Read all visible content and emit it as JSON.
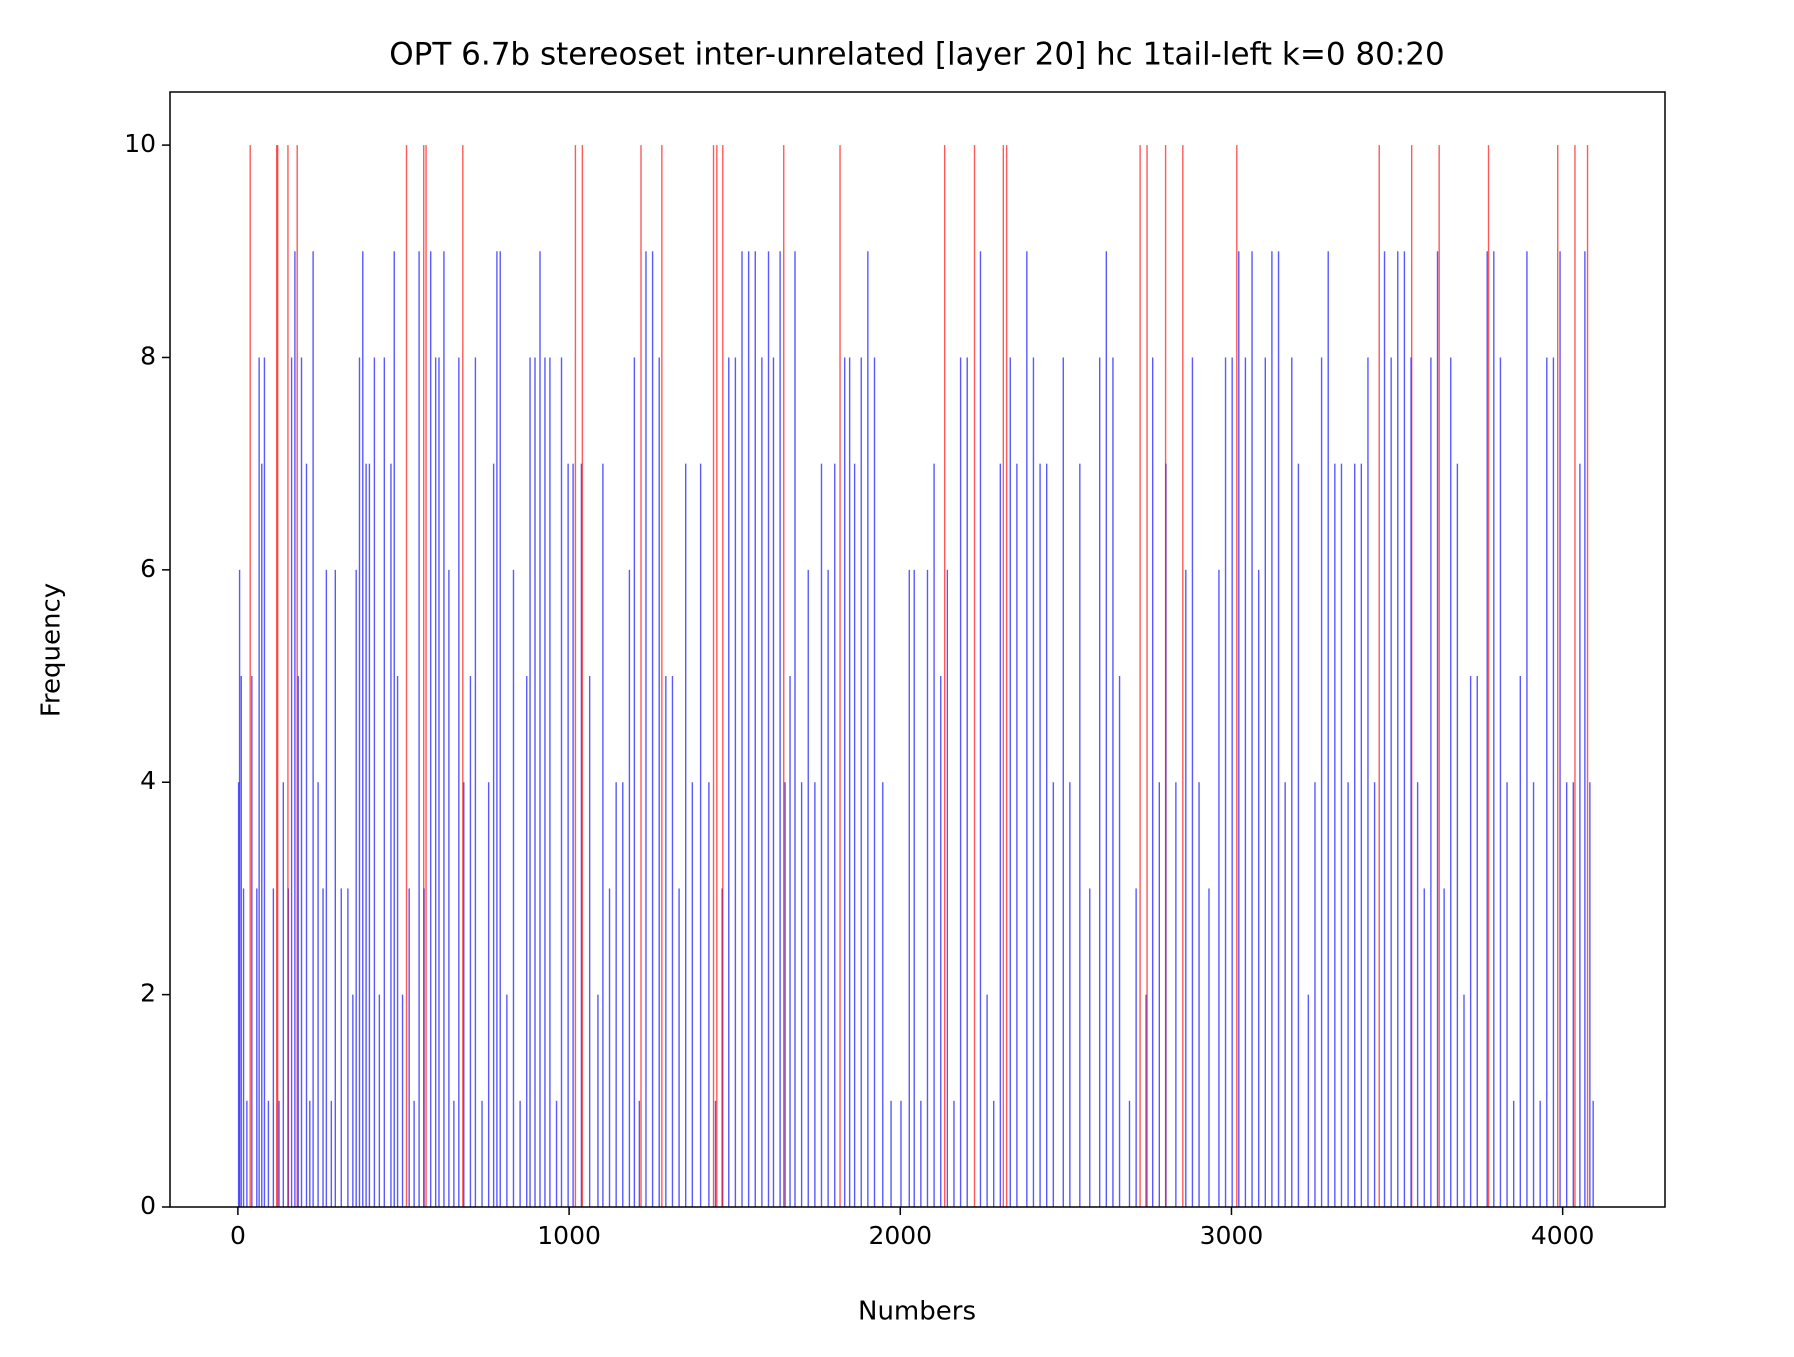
{
  "chart_data": {
    "type": "bar",
    "title": "OPT 6.7b stereoset inter-unrelated [layer 20] hc 1tail-left k=0 80:20",
    "x_label": "Numbers",
    "y_label": "Frequency",
    "xlim": [
      -205,
      4309
    ],
    "ylim": [
      0,
      10.5
    ],
    "xticks": [
      0,
      1000,
      2000,
      3000,
      4000
    ],
    "yticks": [
      0,
      2,
      4,
      6,
      8,
      10
    ],
    "alpha": 0.65,
    "series": [
      {
        "color": "#0000ff",
        "x": [
          0,
          3,
          8,
          15,
          25,
          40,
          55,
          62,
          70,
          78,
          90,
          105,
          122,
          135,
          150,
          160,
          170,
          180,
          190,
          205,
          215,
          225,
          240,
          255,
          265,
          280,
          292,
          310,
          330,
          345,
          355,
          365,
          375,
          385,
          395,
          410,
          425,
          440,
          460,
          470,
          480,
          495,
          515,
          530,
          545,
          560,
          580,
          595,
          605,
          620,
          635,
          650,
          665,
          680,
          700,
          715,
          735,
          755,
          770,
          780,
          790,
          810,
          830,
          850,
          870,
          880,
          895,
          910,
          925,
          940,
          960,
          975,
          995,
          1010,
          1035,
          1060,
          1085,
          1100,
          1120,
          1140,
          1160,
          1180,
          1195,
          1210,
          1230,
          1250,
          1270,
          1290,
          1310,
          1330,
          1350,
          1370,
          1395,
          1420,
          1440,
          1460,
          1480,
          1500,
          1520,
          1540,
          1560,
          1580,
          1600,
          1615,
          1635,
          1650,
          1665,
          1680,
          1700,
          1720,
          1740,
          1760,
          1780,
          1800,
          1830,
          1845,
          1860,
          1880,
          1900,
          1920,
          1945,
          1970,
          2000,
          2025,
          2040,
          2060,
          2080,
          2100,
          2120,
          2140,
          2160,
          2180,
          2200,
          2240,
          2260,
          2280,
          2300,
          2330,
          2350,
          2380,
          2400,
          2420,
          2440,
          2460,
          2490,
          2510,
          2540,
          2570,
          2600,
          2620,
          2640,
          2660,
          2690,
          2710,
          2740,
          2760,
          2780,
          2800,
          2830,
          2860,
          2880,
          2900,
          2930,
          2960,
          2980,
          3000,
          3020,
          3040,
          3060,
          3080,
          3100,
          3120,
          3140,
          3160,
          3180,
          3200,
          3230,
          3250,
          3270,
          3290,
          3310,
          3330,
          3350,
          3370,
          3390,
          3410,
          3430,
          3460,
          3480,
          3500,
          3520,
          3540,
          3560,
          3580,
          3600,
          3620,
          3640,
          3660,
          3680,
          3700,
          3720,
          3740,
          3770,
          3790,
          3810,
          3830,
          3850,
          3870,
          3890,
          3910,
          3930,
          3950,
          3970,
          3990,
          4010,
          4030,
          4050,
          4065,
          4080,
          4090
        ],
        "values": [
          4,
          6,
          5,
          3,
          1,
          5,
          3,
          8,
          7,
          8,
          1,
          3,
          1,
          4,
          3,
          8,
          9,
          5,
          8,
          7,
          1,
          9,
          4,
          3,
          6,
          1,
          6,
          3,
          3,
          2,
          6,
          8,
          9,
          7,
          7,
          8,
          2,
          8,
          7,
          9,
          5,
          2,
          3,
          1,
          9,
          3,
          9,
          8,
          8,
          9,
          6,
          1,
          8,
          4,
          5,
          8,
          1,
          4,
          7,
          9,
          9,
          2,
          6,
          1,
          5,
          8,
          8,
          9,
          8,
          8,
          1,
          8,
          7,
          7,
          7,
          5,
          2,
          7,
          3,
          4,
          4,
          6,
          8,
          1,
          9,
          9,
          8,
          5,
          5,
          3,
          7,
          4,
          7,
          4,
          1,
          3,
          8,
          8,
          9,
          9,
          9,
          8,
          9,
          8,
          9,
          4,
          5,
          9,
          4,
          6,
          4,
          7,
          6,
          7,
          8,
          8,
          7,
          8,
          9,
          8,
          4,
          1,
          1,
          6,
          6,
          1,
          6,
          7,
          5,
          6,
          1,
          8,
          8,
          9,
          2,
          1,
          7,
          8,
          7,
          9,
          8,
          7,
          7,
          4,
          8,
          4,
          7,
          3,
          8,
          9,
          8,
          5,
          1,
          3,
          2,
          8,
          4,
          7,
          4,
          6,
          8,
          4,
          3,
          6,
          8,
          8,
          9,
          8,
          9,
          6,
          8,
          9,
          9,
          4,
          8,
          7,
          2,
          4,
          8,
          9,
          7,
          7,
          4,
          7,
          7,
          8,
          4,
          9,
          8,
          9,
          9,
          8,
          4,
          3,
          8,
          9,
          3,
          8,
          7,
          2,
          5,
          5,
          9,
          9,
          8,
          4,
          1,
          5,
          9,
          4,
          1,
          8,
          8,
          9,
          4,
          4,
          7,
          9,
          4,
          1
        ]
      },
      {
        "color": "#ff0000",
        "x": [
          35,
          115,
          118,
          149,
          177,
          507,
          559,
          566,
          677,
          1017,
          1038,
          1215,
          1278,
          1434,
          1444,
          1462,
          1646,
          1816,
          2132,
          2222,
          2309,
          2319,
          2722,
          2743,
          2799,
          2851,
          3014,
          3444,
          3542,
          3625,
          3774,
          3983,
          4035,
          4073
        ],
        "values": [
          10,
          10,
          10,
          10,
          10,
          10,
          10,
          10,
          10,
          10,
          10,
          10,
          10,
          10,
          10,
          10,
          10,
          10,
          10,
          10,
          10,
          10,
          10,
          10,
          10,
          10,
          10,
          10,
          10,
          10,
          10,
          10,
          10,
          10
        ]
      }
    ]
  }
}
